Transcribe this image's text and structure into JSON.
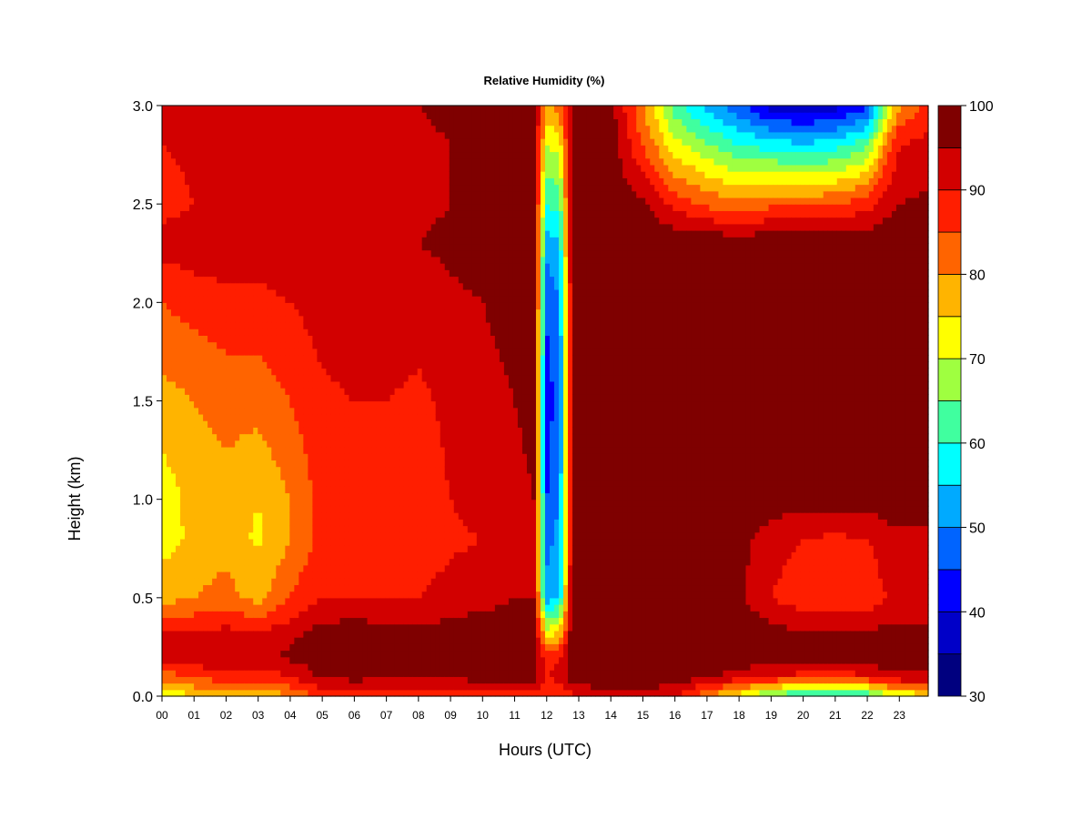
{
  "chart_data": {
    "type": "heatmap",
    "title": "Relative Humidity (%)",
    "xlabel": "Hours (UTC)",
    "ylabel": "Height (km)",
    "x_ticks": [
      "00",
      "01",
      "02",
      "03",
      "04",
      "05",
      "06",
      "07",
      "08",
      "09",
      "10",
      "11",
      "12",
      "13",
      "14",
      "15",
      "16",
      "17",
      "18",
      "19",
      "20",
      "21",
      "22",
      "23"
    ],
    "xlim": [
      0,
      23.9
    ],
    "y_ticks": [
      "0.0",
      "0.5",
      "1.0",
      "1.5",
      "2.0",
      "2.5",
      "3.0"
    ],
    "ylim": [
      0,
      3.0
    ],
    "colorbar": {
      "ticks": [
        "30",
        "40",
        "50",
        "60",
        "70",
        "80",
        "90",
        "100"
      ],
      "range": [
        30,
        100
      ],
      "levels": [
        30,
        35,
        40,
        45,
        50,
        55,
        60,
        65,
        70,
        75,
        80,
        85,
        90,
        95,
        100
      ],
      "colors": [
        "#00007F",
        "#0000C8",
        "#0000FF",
        "#0064FF",
        "#00AAFF",
        "#00FFFF",
        "#40FF9F",
        "#9FFF40",
        "#FFFF00",
        "#FFB400",
        "#FF6400",
        "#FF1E00",
        "#D20000",
        "#7F0000"
      ]
    },
    "grid": false,
    "hours": [
      0,
      1,
      2,
      3,
      4,
      5,
      6,
      7,
      8,
      9,
      10,
      11,
      11.6,
      12.0,
      12.4,
      12.8,
      13,
      14,
      15,
      16,
      17,
      18,
      19,
      20,
      21,
      22,
      22.6,
      23,
      23.9
    ],
    "heights_km": [
      0.0,
      0.1,
      0.2,
      0.3,
      0.5,
      0.8,
      1.0,
      1.5,
      2.0,
      2.3,
      2.5,
      2.8,
      3.0
    ],
    "values": [
      [
        70,
        82,
        92,
        94,
        78,
        73,
        72,
        78,
        85,
        92,
        88,
        90,
        92
      ],
      [
        75,
        85,
        94,
        92,
        80,
        76,
        77,
        80,
        87,
        93,
        90,
        91,
        92
      ],
      [
        78,
        88,
        95,
        93,
        82,
        78,
        78,
        82,
        88,
        94,
        91,
        91,
        92
      ],
      [
        75,
        87,
        94,
        92,
        78,
        74,
        75,
        82,
        88,
        94,
        91,
        91,
        92
      ],
      [
        80,
        90,
        96,
        94,
        85,
        80,
        80,
        85,
        90,
        94,
        92,
        92,
        93
      ],
      [
        86,
        96,
        98,
        98,
        90,
        87,
        87,
        89,
        92,
        95,
        93,
        93,
        94
      ],
      [
        86,
        97,
        99,
        99,
        90,
        87,
        88,
        90,
        93,
        95,
        94,
        94,
        95
      ],
      [
        86,
        96,
        98,
        98,
        90,
        87,
        88,
        90,
        93,
        95,
        94,
        94,
        95
      ],
      [
        86,
        95,
        97,
        97,
        90,
        87,
        88,
        89,
        92,
        95,
        94,
        94,
        95
      ],
      [
        87,
        96,
        98,
        98,
        92,
        89,
        90,
        91,
        94,
        96,
        95,
        95,
        96
      ],
      [
        88,
        97,
        99,
        99,
        93,
        90,
        92,
        93,
        95,
        97,
        96,
        96,
        97
      ],
      [
        88,
        97,
        99,
        99,
        95,
        93,
        94,
        95,
        97,
        98,
        97,
        97,
        97
      ],
      [
        88,
        97,
        98,
        99,
        95,
        94,
        95,
        96,
        98,
        99,
        98,
        98,
        98
      ],
      [
        85,
        90,
        88,
        75,
        52,
        48,
        45,
        42,
        46,
        52,
        60,
        70,
        80
      ],
      [
        85,
        92,
        90,
        78,
        55,
        52,
        50,
        48,
        50,
        55,
        62,
        72,
        82
      ],
      [
        88,
        98,
        99,
        99,
        98,
        97,
        96,
        95,
        97,
        99,
        99,
        98,
        97
      ],
      [
        90,
        99,
        100,
        100,
        99,
        99,
        98,
        96,
        97,
        99,
        99,
        98,
        97
      ],
      [
        93,
        99,
        100,
        100,
        99,
        99,
        98,
        97,
        99,
        100,
        99,
        98,
        97
      ],
      [
        93,
        99,
        100,
        100,
        100,
        99,
        99,
        98,
        100,
        100,
        96,
        85,
        80
      ],
      [
        90,
        98,
        100,
        100,
        99,
        99,
        99,
        99,
        100,
        100,
        88,
        72,
        62
      ],
      [
        80,
        96,
        100,
        100,
        99,
        99,
        99,
        99,
        100,
        99,
        84,
        66,
        53
      ],
      [
        72,
        92,
        99,
        99,
        96,
        97,
        99,
        99,
        100,
        99,
        82,
        60,
        46
      ],
      [
        62,
        90,
        98,
        98,
        90,
        92,
        98,
        99,
        100,
        99,
        84,
        58,
        38
      ],
      [
        58,
        88,
        97,
        96,
        87,
        90,
        97,
        99,
        100,
        99,
        84,
        56,
        36
      ],
      [
        58,
        88,
        97,
        96,
        86,
        89,
        97,
        99,
        100,
        99,
        85,
        58,
        38
      ],
      [
        60,
        89,
        97,
        96,
        86,
        90,
        97,
        99,
        100,
        99,
        88,
        64,
        44
      ],
      [
        68,
        93,
        99,
        98,
        90,
        93,
        98,
        99,
        100,
        99,
        93,
        82,
        66
      ],
      [
        70,
        94,
        99,
        98,
        90,
        94,
        98,
        99,
        100,
        99,
        95,
        90,
        80
      ],
      [
        72,
        94,
        99,
        98,
        90,
        94,
        98,
        99,
        100,
        99,
        96,
        92,
        86
      ]
    ]
  }
}
